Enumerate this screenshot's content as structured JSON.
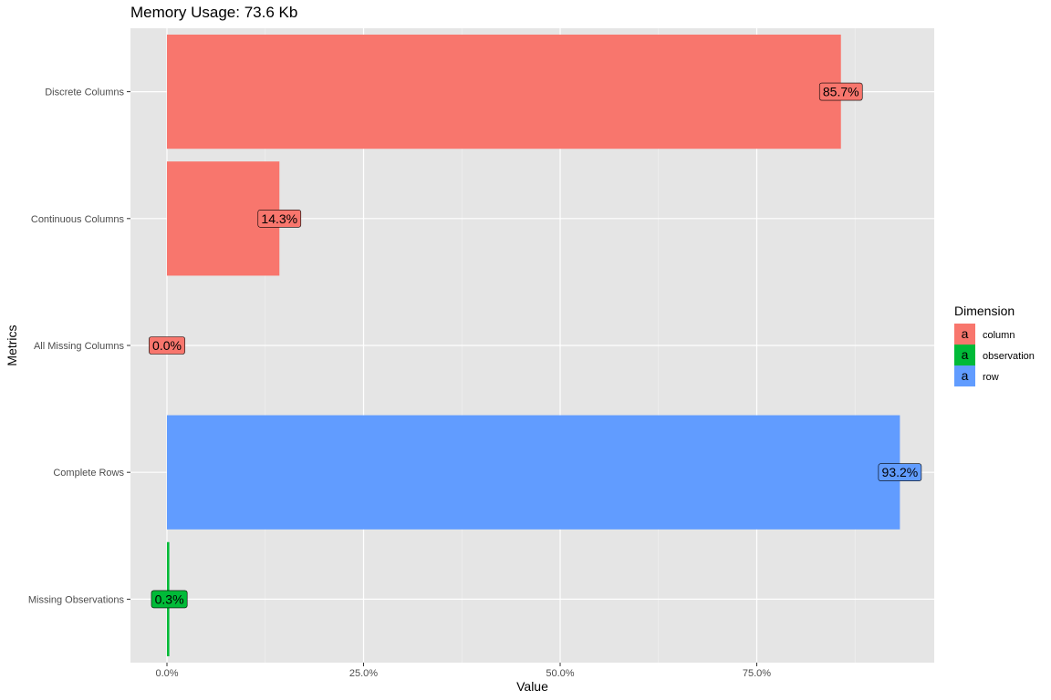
{
  "chart_data": {
    "type": "bar",
    "orientation": "horizontal",
    "title": "Memory Usage: 73.6 Kb",
    "xlabel": "Value",
    "ylabel": "Metrics",
    "xlim": [
      0,
      100
    ],
    "grid": true,
    "x_ticks": [
      {
        "value": 0,
        "label": "0.0%"
      },
      {
        "value": 25,
        "label": "25.0%"
      },
      {
        "value": 50,
        "label": "50.0%"
      },
      {
        "value": 75,
        "label": "75.0%"
      }
    ],
    "categories": [
      "Discrete Columns",
      "Continuous Columns",
      "All Missing Columns",
      "Complete Rows",
      "Missing Observations"
    ],
    "values": [
      85.7,
      14.3,
      0.0,
      93.2,
      0.3
    ],
    "labels": [
      "85.7%",
      "14.3%",
      "0.0%",
      "93.2%",
      "0.3%"
    ],
    "groups": [
      "column",
      "column",
      "column",
      "row",
      "observation"
    ],
    "legend": {
      "title": "Dimension",
      "position": "right",
      "key_glyph": "a",
      "entries": [
        {
          "name": "column",
          "color": "#F8766D"
        },
        {
          "name": "observation",
          "color": "#00BA38"
        },
        {
          "name": "row",
          "color": "#619CFF"
        }
      ]
    },
    "colors": {
      "column": "#F8766D",
      "observation": "#00BA38",
      "row": "#619CFF",
      "panel": "#E5E5E5",
      "grid": "#FFFFFF"
    }
  }
}
